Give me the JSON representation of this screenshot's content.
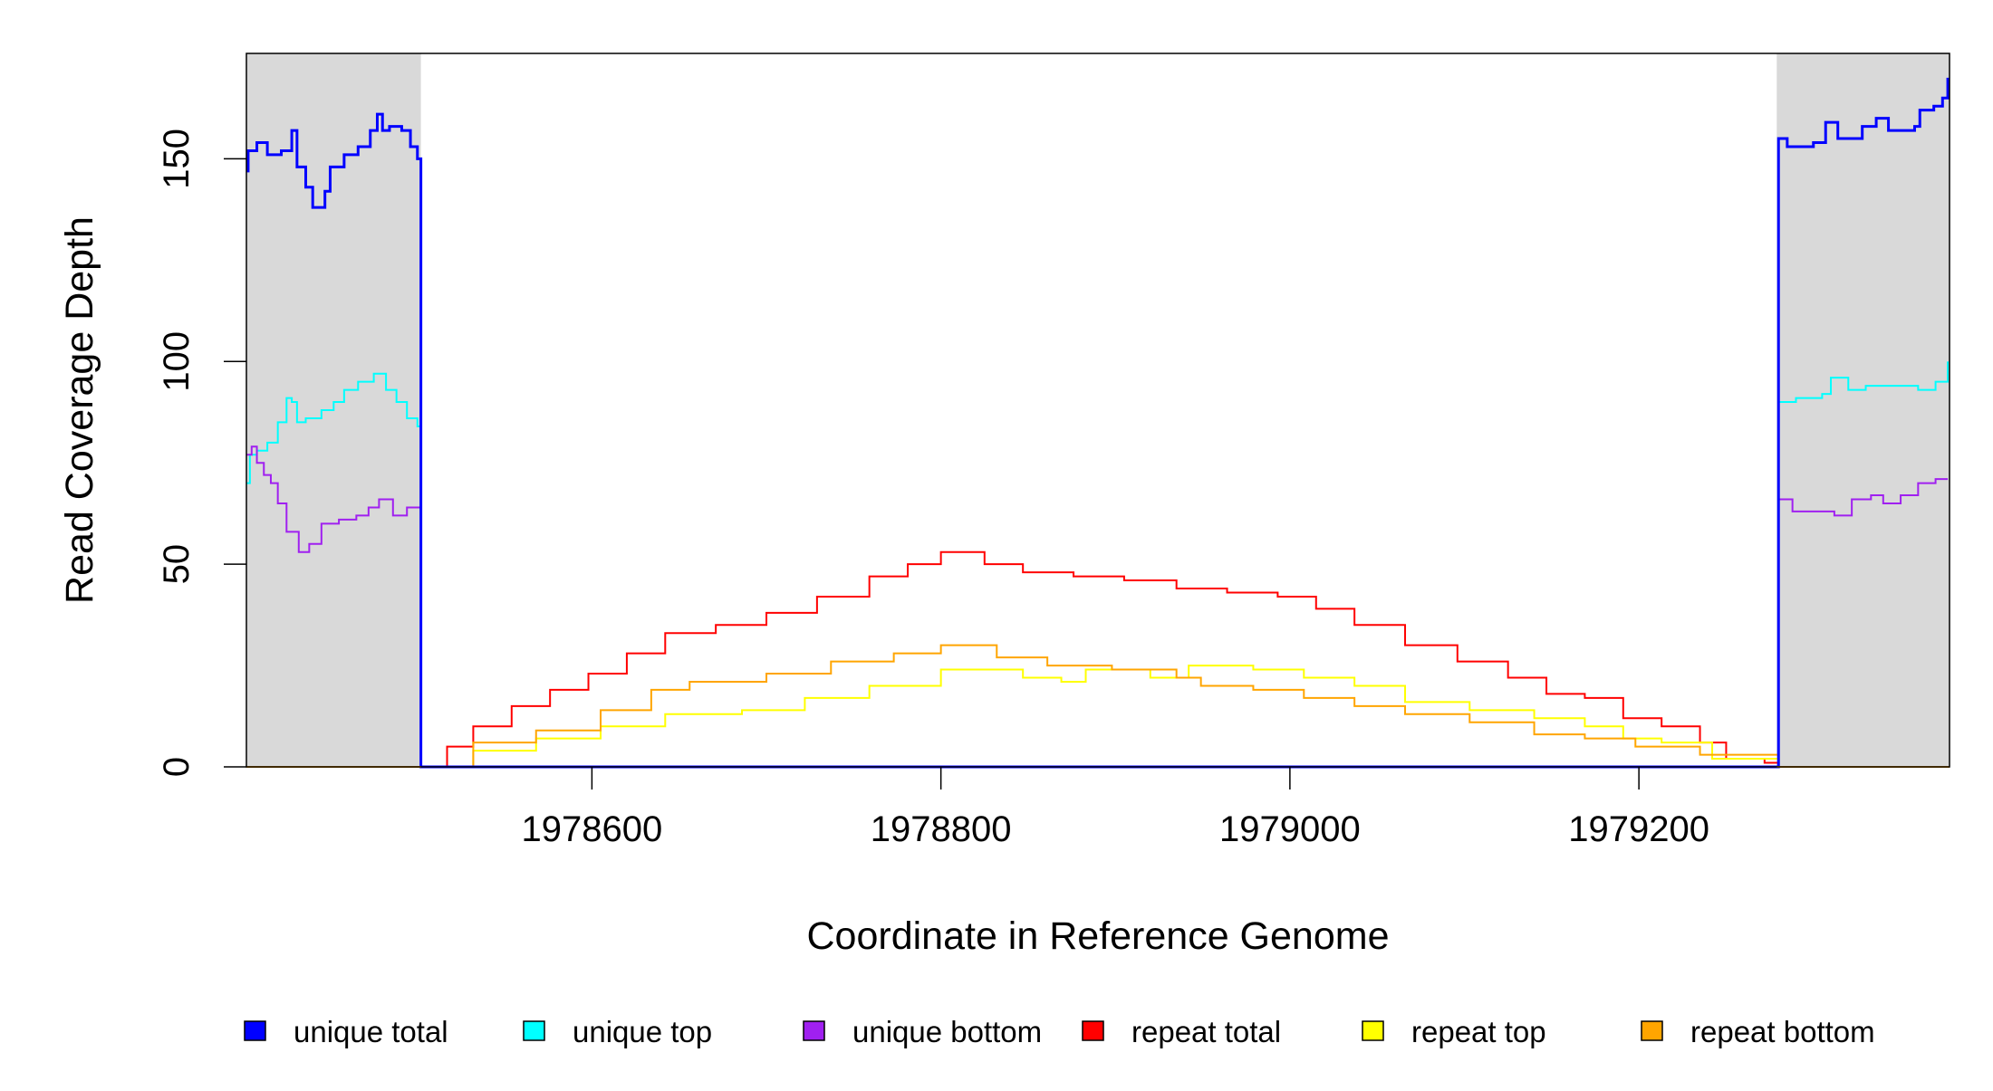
{
  "chart_data": {
    "type": "line",
    "title": "",
    "xlabel": "Coordinate in Reference Genome",
    "ylabel": "Read Coverage Depth",
    "xlim": [
      1978402,
      1979378
    ],
    "ylim": [
      0,
      176
    ],
    "x_ticks": [
      1978600,
      1978800,
      1979000,
      1979200
    ],
    "x_tick_labels": [
      "1978600",
      "1978800",
      "1979000",
      "1979200"
    ],
    "y_ticks": [
      0,
      50,
      100,
      150
    ],
    "y_tick_labels": [
      "0",
      "50",
      "100",
      "150"
    ],
    "shaded_regions": [
      [
        1978402,
        1978502
      ],
      [
        1979279,
        1979378
      ]
    ],
    "shade_color": "#d9d9d9",
    "legend_position": "bottom",
    "series": [
      {
        "name": "unique total",
        "color": "#0000ff",
        "x": [
          1978402,
          1978403,
          1978408,
          1978414,
          1978422,
          1978428,
          1978431,
          1978436,
          1978440,
          1978447,
          1978450,
          1978458,
          1978466,
          1978473,
          1978477,
          1978480,
          1978484,
          1978491,
          1978496,
          1978500,
          1978502,
          1979279,
          1979280,
          1979285,
          1979300,
          1979307,
          1979314,
          1979328,
          1979336,
          1979343,
          1979358,
          1979361,
          1979369,
          1979374,
          1979377
        ],
        "y": [
          147,
          152,
          154,
          151,
          152,
          157,
          148,
          143,
          138,
          142,
          148,
          151,
          153,
          157,
          161,
          157,
          158,
          157,
          153,
          150,
          0,
          0,
          155,
          153,
          154,
          159,
          155,
          158,
          160,
          157,
          158,
          162,
          163,
          165,
          170
        ]
      },
      {
        "name": "unique top",
        "color": "#00ffff",
        "x": [
          1978402,
          1978404,
          1978408,
          1978414,
          1978420,
          1978425,
          1978428,
          1978431,
          1978436,
          1978445,
          1978452,
          1978458,
          1978466,
          1978475,
          1978482,
          1978488,
          1978494,
          1978500,
          1978502,
          1979279,
          1979280,
          1979290,
          1979305,
          1979310,
          1979320,
          1979330,
          1979345,
          1979360,
          1979370,
          1979377
        ],
        "y": [
          70,
          77,
          78,
          80,
          85,
          91,
          90,
          85,
          86,
          88,
          90,
          93,
          95,
          97,
          93,
          90,
          86,
          84,
          0,
          0,
          90,
          91,
          92,
          96,
          93,
          94,
          94,
          93,
          95,
          100
        ]
      },
      {
        "name": "unique bottom",
        "color": "#a020f0",
        "x": [
          1978402,
          1978405,
          1978408,
          1978412,
          1978416,
          1978420,
          1978425,
          1978432,
          1978438,
          1978445,
          1978455,
          1978465,
          1978472,
          1978478,
          1978486,
          1978494,
          1978500,
          1978502,
          1979279,
          1979280,
          1979288,
          1979300,
          1979312,
          1979322,
          1979333,
          1979340,
          1979350,
          1979360,
          1979370,
          1979377
        ],
        "y": [
          77,
          79,
          75,
          72,
          70,
          65,
          58,
          53,
          55,
          60,
          61,
          62,
          64,
          66,
          62,
          64,
          64,
          0,
          0,
          66,
          63,
          63,
          62,
          66,
          67,
          65,
          67,
          70,
          71,
          71
        ]
      },
      {
        "name": "repeat total",
        "color": "#ff0000",
        "x": [
          1978502,
          1978517,
          1978532,
          1978554,
          1978576,
          1978598,
          1978620,
          1978642,
          1978671,
          1978700,
          1978729,
          1978759,
          1978781,
          1978800,
          1978825,
          1978847,
          1978876,
          1978905,
          1978935,
          1978964,
          1978993,
          1979015,
          1979037,
          1979066,
          1979096,
          1979125,
          1979147,
          1979169,
          1979191,
          1979213,
          1979235,
          1979250,
          1979272,
          1979280
        ],
        "y": [
          0,
          5,
          10,
          15,
          19,
          23,
          28,
          33,
          35,
          38,
          42,
          47,
          50,
          53,
          50,
          48,
          47,
          46,
          44,
          43,
          42,
          39,
          35,
          30,
          26,
          22,
          18,
          17,
          12,
          10,
          6,
          2,
          1,
          0
        ]
      },
      {
        "name": "repeat top",
        "color": "#ffff00",
        "x": [
          1978502,
          1978532,
          1978568,
          1978605,
          1978642,
          1978686,
          1978722,
          1978759,
          1978800,
          1978847,
          1978869,
          1978883,
          1978920,
          1978942,
          1978979,
          1979008,
          1979037,
          1979066,
          1979103,
          1979140,
          1979169,
          1979191,
          1979213,
          1979242,
          1979280
        ],
        "y": [
          0,
          4,
          7,
          10,
          13,
          14,
          17,
          20,
          24,
          22,
          21,
          24,
          22,
          25,
          24,
          22,
          20,
          16,
          14,
          12,
          10,
          7,
          6,
          2,
          0
        ]
      },
      {
        "name": "repeat bottom",
        "color": "#ffa500",
        "x": [
          1978502,
          1978532,
          1978568,
          1978605,
          1978634,
          1978656,
          1978700,
          1978737,
          1978773,
          1978800,
          1978832,
          1978861,
          1978898,
          1978935,
          1978949,
          1978979,
          1979008,
          1979037,
          1979066,
          1979103,
          1979140,
          1979169,
          1979198,
          1979235,
          1979280
        ],
        "y": [
          0,
          6,
          9,
          14,
          19,
          21,
          23,
          26,
          28,
          30,
          27,
          25,
          24,
          22,
          20,
          19,
          17,
          15,
          13,
          11,
          8,
          7,
          5,
          3,
          0
        ]
      }
    ]
  }
}
